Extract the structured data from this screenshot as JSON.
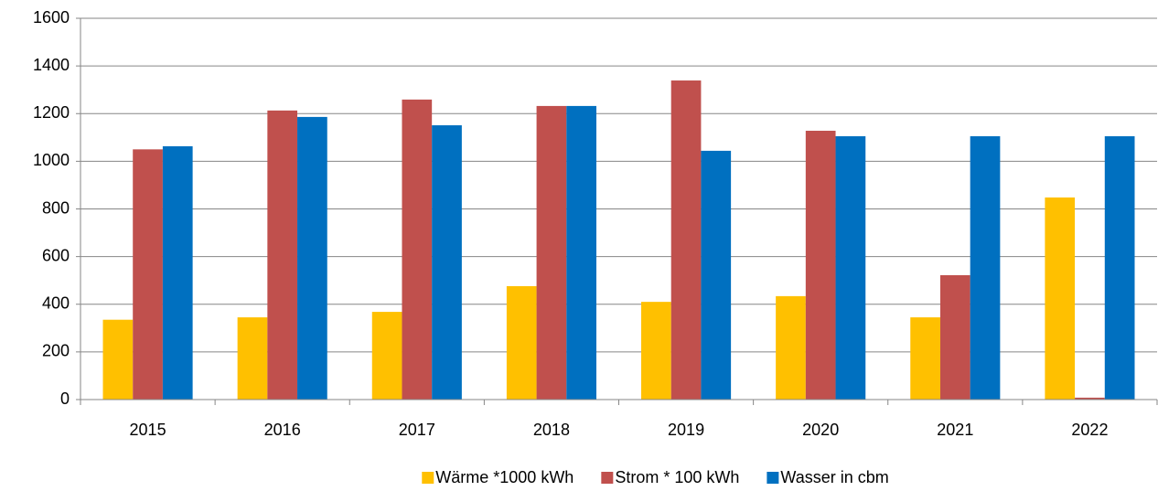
{
  "chart_data": {
    "type": "bar",
    "categories": [
      "2015",
      "2016",
      "2017",
      "2018",
      "2019",
      "2020",
      "2021",
      "2022"
    ],
    "series": [
      {
        "name": "Wärme *1000 kWh",
        "color": "#ffc000",
        "values": [
          335,
          345,
          368,
          476,
          410,
          434,
          345,
          848
        ]
      },
      {
        "name": "Strom * 100 kWh",
        "color": "#c0504d",
        "values": [
          1050,
          1213,
          1259,
          1232,
          1339,
          1128,
          522,
          8
        ]
      },
      {
        "name": "Wasser in cbm",
        "color": "#0070c0",
        "values": [
          1063,
          1186,
          1151,
          1232,
          1044,
          1105,
          1105,
          1105
        ]
      }
    ],
    "ylim": [
      0,
      1600
    ],
    "yticks": [
      0,
      200,
      400,
      600,
      800,
      1000,
      1200,
      1400,
      1600
    ],
    "grid": true,
    "legend": "bottom"
  }
}
